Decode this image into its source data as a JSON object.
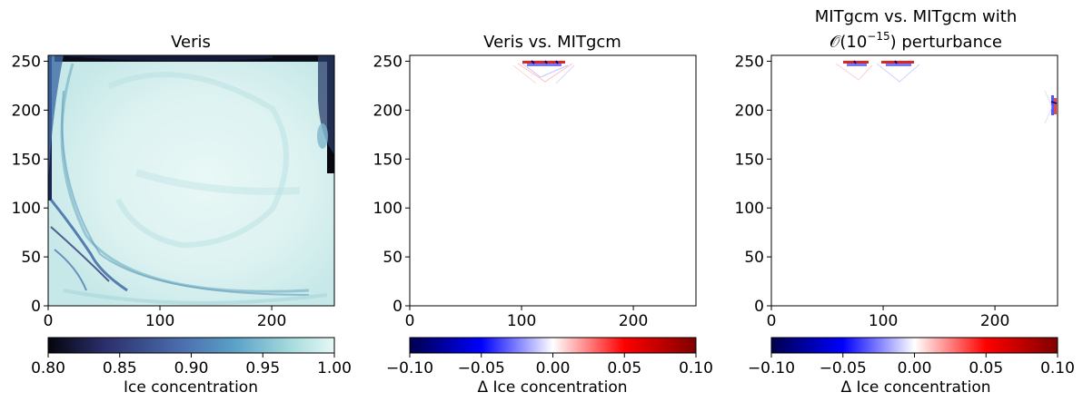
{
  "chart_data": [
    {
      "type": "heatmap",
      "title": "Veris",
      "x_ticks": [
        "0",
        "100",
        "200"
      ],
      "x_tick_values": [
        0,
        100,
        200
      ],
      "y_ticks": [
        "0",
        "50",
        "100",
        "150",
        "200",
        "250"
      ],
      "y_tick_values": [
        0,
        50,
        100,
        150,
        200,
        250
      ],
      "xlim": [
        0,
        256
      ],
      "ylim": [
        0,
        256
      ],
      "colorbar": {
        "label": "Ice concentration",
        "ticks": [
          "0.80",
          "0.85",
          "0.90",
          "0.95",
          "1.00"
        ],
        "range": [
          0.8,
          1.0
        ],
        "colormap": [
          "#04050d",
          "#2b2f6b",
          "#4a6aaa",
          "#5aa0c8",
          "#a8dcdc",
          "#e6f8f6"
        ]
      }
    },
    {
      "type": "heatmap",
      "title": "Veris vs. MITgcm",
      "x_ticks": [
        "0",
        "100",
        "200"
      ],
      "x_tick_values": [
        0,
        100,
        200
      ],
      "y_ticks": [
        "0",
        "50",
        "100",
        "150",
        "200",
        "250"
      ],
      "y_tick_values": [
        0,
        50,
        100,
        150,
        200,
        250
      ],
      "xlim": [
        0,
        256
      ],
      "ylim": [
        0,
        256
      ],
      "colorbar": {
        "label": "Δ Ice concentration",
        "ticks": [
          "−0.10",
          "−0.05",
          "0.00",
          "0.05",
          "0.10"
        ],
        "range": [
          -0.1,
          0.1
        ],
        "colormap": [
          "#00004c",
          "#0000ff",
          "#ffffff",
          "#ff0000",
          "#800000"
        ]
      }
    },
    {
      "type": "heatmap",
      "title_line1": "MITgcm vs. MITgcm with",
      "title_line2_prefix": "𝒪(10",
      "title_line2_exp": "−15",
      "title_line2_suffix": ") perturbance",
      "x_ticks": [
        "0",
        "100",
        "200"
      ],
      "x_tick_values": [
        0,
        100,
        200
      ],
      "y_ticks": [
        "0",
        "50",
        "100",
        "150",
        "200",
        "250"
      ],
      "y_tick_values": [
        0,
        50,
        100,
        150,
        200,
        250
      ],
      "xlim": [
        0,
        256
      ],
      "ylim": [
        0,
        256
      ],
      "colorbar": {
        "label": "Δ Ice concentration",
        "ticks": [
          "−0.10",
          "−0.05",
          "0.00",
          "0.05",
          "0.10"
        ],
        "range": [
          -0.1,
          0.1
        ],
        "colormap": [
          "#00004c",
          "#0000ff",
          "#ffffff",
          "#ff0000",
          "#800000"
        ]
      }
    }
  ]
}
